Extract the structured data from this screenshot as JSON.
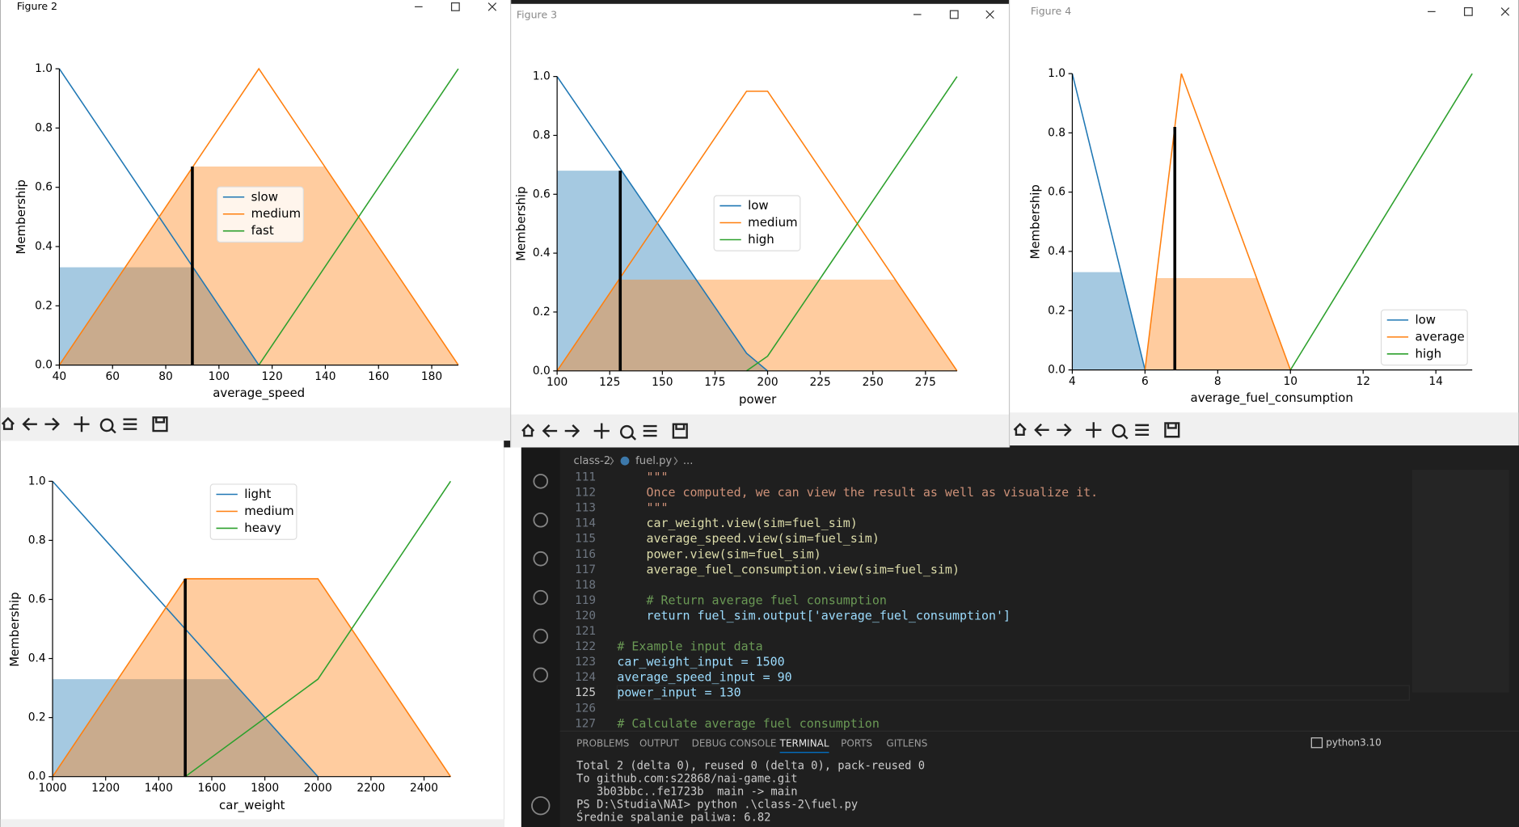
{
  "windows": [
    "Figure 2",
    "Figure 3",
    "Figure 4"
  ],
  "chart_data": [
    {
      "type": "line",
      "x_label": "average_speed",
      "y_label": "Membership",
      "xlim": [
        40,
        190
      ],
      "ylim": [
        0,
        1
      ],
      "xticks": [
        40,
        60,
        80,
        100,
        120,
        140,
        160,
        180
      ],
      "yticks": [
        {
          "value": 0,
          "label": "0.0"
        },
        0.2,
        0.4,
        0.6,
        0.8,
        {
          "value": 1,
          "label": "1.0"
        }
      ],
      "series": [
        {
          "name": "slow",
          "color": "#1f77b4",
          "x": [
            40,
            115
          ],
          "values": [
            1,
            0
          ],
          "activation": 0.33
        },
        {
          "name": "medium",
          "color": "#ff7f0e",
          "x": [
            40,
            115,
            190
          ],
          "values": [
            0,
            1,
            0
          ],
          "activation": 0.67
        },
        {
          "name": "fast",
          "color": "#2ca02c",
          "x": [
            115,
            190
          ],
          "values": [
            0,
            1
          ]
        }
      ],
      "result": {
        "x": 90,
        "value": 0.67
      }
    },
    {
      "type": "line",
      "x_label": "power",
      "y_label": "Membership",
      "xlim": [
        100,
        290
      ],
      "ylim": [
        0,
        1
      ],
      "xticks": [
        100,
        125,
        150,
        175,
        200,
        225,
        250,
        275
      ],
      "yticks": [
        {
          "value": 0,
          "label": "0.0"
        },
        0.2,
        0.4,
        0.6,
        0.8,
        {
          "value": 1,
          "label": "1.0"
        }
      ],
      "series": [
        {
          "name": "low",
          "color": "#1f77b4",
          "x": [
            100,
            190,
            200
          ],
          "values": [
            1,
            0.06,
            0
          ],
          "activation": 0.68
        },
        {
          "name": "medium",
          "color": "#ff7f0e",
          "x": [
            100,
            190,
            200,
            290
          ],
          "values": [
            0,
            0.95,
            0.95,
            0
          ],
          "activation": 0.31
        },
        {
          "name": "high",
          "color": "#2ca02c",
          "x": [
            190,
            200,
            290
          ],
          "values": [
            0,
            0.05,
            1
          ]
        }
      ],
      "result": {
        "x": 130,
        "value": 0.68
      }
    },
    {
      "type": "line",
      "x_label": "average_fuel_consumption",
      "y_label": "Membership",
      "xlim": [
        4,
        15
      ],
      "ylim": [
        0,
        1
      ],
      "xticks": [
        4,
        6,
        8,
        10,
        12,
        14
      ],
      "yticks": [
        {
          "value": 0,
          "label": "0.0"
        },
        0.2,
        0.4,
        0.6,
        0.8,
        {
          "value": 1,
          "label": "1.0"
        }
      ],
      "series": [
        {
          "name": "low",
          "color": "#1f77b4",
          "x": [
            4,
            6
          ],
          "values": [
            1,
            0
          ],
          "activation": 0.33
        },
        {
          "name": "average",
          "color": "#ff7f0e",
          "x": [
            6,
            7,
            10
          ],
          "values": [
            0,
            1,
            0
          ],
          "activation": 0.31
        },
        {
          "name": "high",
          "color": "#2ca02c",
          "x": [
            10,
            15
          ],
          "values": [
            0,
            1
          ]
        }
      ],
      "result": {
        "x": 6.82,
        "value": 0.82
      }
    },
    {
      "type": "line",
      "x_label": "car_weight",
      "y_label": "Membership",
      "xlim": [
        1000,
        2500
      ],
      "ylim": [
        0,
        1
      ],
      "xticks": [
        1000,
        1200,
        1400,
        1600,
        1800,
        2000,
        2200,
        2400
      ],
      "yticks": [
        {
          "value": 0,
          "label": "0.0"
        },
        0.2,
        0.4,
        0.6,
        0.8,
        {
          "value": 1,
          "label": "1.0"
        }
      ],
      "series": [
        {
          "name": "light",
          "color": "#1f77b4",
          "x": [
            1000,
            2000
          ],
          "values": [
            1,
            0
          ],
          "activation": 0.33
        },
        {
          "name": "medium",
          "color": "#ff7f0e",
          "x": [
            1000,
            1500,
            2000,
            2500
          ],
          "values": [
            0,
            0.67,
            0.67,
            0
          ],
          "activation": 0.67
        },
        {
          "name": "heavy",
          "color": "#2ca02c",
          "x": [
            1500,
            2000,
            2500
          ],
          "values": [
            0,
            0.33,
            1
          ]
        }
      ],
      "result": {
        "x": 1500,
        "value": 0.67
      }
    }
  ],
  "editor": {
    "breadcrumb": [
      "class-2",
      "fuel.py",
      "..."
    ],
    "current_line": 125,
    "lines": [
      {
        "number": 111,
        "text": "    \"\"\"",
        "color": "#ce9178"
      },
      {
        "number": 112,
        "text": "    Once computed, we can view the result as well as visualize it.",
        "color": "#ce9178"
      },
      {
        "number": 113,
        "text": "    \"\"\"",
        "color": "#ce9178"
      },
      {
        "number": 114,
        "text": "    car_weight.view(sim=fuel_sim)",
        "color": "#dcdcaa"
      },
      {
        "number": 115,
        "text": "    average_speed.view(sim=fuel_sim)",
        "color": "#dcdcaa"
      },
      {
        "number": 116,
        "text": "    power.view(sim=fuel_sim)",
        "color": "#dcdcaa"
      },
      {
        "number": 117,
        "text": "    average_fuel_consumption.view(sim=fuel_sim)",
        "color": "#dcdcaa"
      },
      {
        "number": 118
      },
      {
        "number": 119,
        "text": "    # Return average fuel consumption",
        "color": "#6a9955"
      },
      {
        "number": 120,
        "text": "    return fuel_sim.output['average_fuel_consumption']",
        "color": "#9cdcfe"
      },
      {
        "number": 121
      },
      {
        "number": 122,
        "text": "# Example input data",
        "color": "#6a9955"
      },
      {
        "number": 123,
        "text": "car_weight_input = 1500",
        "color": "#9cdcfe"
      },
      {
        "number": 124,
        "text": "average_speed_input = 90",
        "color": "#9cdcfe"
      },
      {
        "number": 125,
        "text": "power_input = 130",
        "color": "#9cdcfe"
      },
      {
        "number": 126
      },
      {
        "number": 127,
        "text": "# Calculate average fuel consumption",
        "color": "#6a9955"
      }
    ]
  },
  "terminal": {
    "tabs": [
      "PROBLEMS",
      "OUTPUT",
      "DEBUG CONSOLE",
      "TERMINAL",
      "PORTS",
      "GITLENS"
    ],
    "active_tab": "TERMINAL",
    "shell": "python3.10",
    "lines": [
      "Total 2 (delta 0), reused 0 (delta 0), pack-reused 0",
      "To github.com:s22868/nai-game.git",
      "   3b03bbc..fe1723b  main -> main",
      "PS D:\\Studia\\NAI> python .\\class-2\\fuel.py",
      "Średnie spalanie paliwa: 6.82"
    ]
  }
}
